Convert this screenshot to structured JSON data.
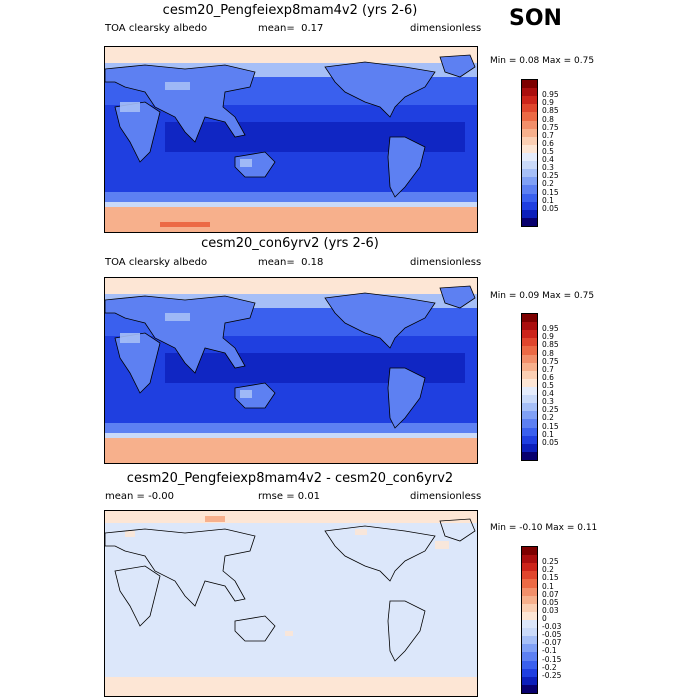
{
  "season": "SON",
  "colors": {
    "abs_scale": [
      "#08006e",
      "#0c1fba",
      "#1f3fe0",
      "#3a60ee",
      "#5d80f2",
      "#80a0f5",
      "#a6bff7",
      "#cadaf9",
      "#e5ecfb",
      "#fde6d5",
      "#fbcfb3",
      "#f7b08c",
      "#f28f6a",
      "#ec6a45",
      "#e0462d",
      "#cc241a",
      "#aa0e0e",
      "#7d0000"
    ],
    "diff_scale": [
      "#08006e",
      "#0c1fba",
      "#1f3fe0",
      "#3a60ee",
      "#5d80f2",
      "#80a0f5",
      "#a6bff7",
      "#cadaf9",
      "#dce7fa",
      "#fde6d5",
      "#fbcfb3",
      "#f7b08c",
      "#f28f6a",
      "#ec6a45",
      "#e0462d",
      "#cc241a",
      "#aa0e0e",
      "#7d0000"
    ]
  },
  "panels": [
    {
      "title": "cesm20_Pengfeiexp8mam4v2 (yrs 2-6)",
      "left_label": "TOA clearsky albedo",
      "mean_label": "mean=",
      "mean_value": "0.17",
      "units": "dimensionless",
      "minmax": "Min =   0.08 Max =   0.75",
      "levels": [
        "0.95",
        "0.9",
        "0.85",
        "0.8",
        "0.75",
        "0.7",
        "0.6",
        "0.5",
        "0.4",
        "0.3",
        "0.25",
        "0.2",
        "0.15",
        "0.1",
        "0.05"
      ]
    },
    {
      "title": "cesm20_con6yrv2 (yrs 2-6)",
      "left_label": "TOA clearsky albedo",
      "mean_label": "mean=",
      "mean_value": "0.18",
      "units": "dimensionless",
      "minmax": "Min =   0.09 Max =   0.75",
      "levels": [
        "0.95",
        "0.9",
        "0.85",
        "0.8",
        "0.75",
        "0.7",
        "0.6",
        "0.5",
        "0.4",
        "0.3",
        "0.25",
        "0.2",
        "0.15",
        "0.1",
        "0.05"
      ]
    },
    {
      "title": "cesm20_Pengfeiexp8mam4v2 - cesm20_con6yrv2",
      "left_label": "mean =  -0.00",
      "mid_label": "rmse =   0.01",
      "units": "dimensionless",
      "minmax": "Min =  -0.10 Max =   0.11",
      "levels": [
        "0.25",
        "0.2",
        "0.15",
        "0.1",
        "0.07",
        "0.05",
        "0.03",
        "0",
        "-0.03",
        "-0.05",
        "-0.07",
        "-0.1",
        "-0.15",
        "-0.2",
        "-0.25"
      ]
    }
  ]
}
